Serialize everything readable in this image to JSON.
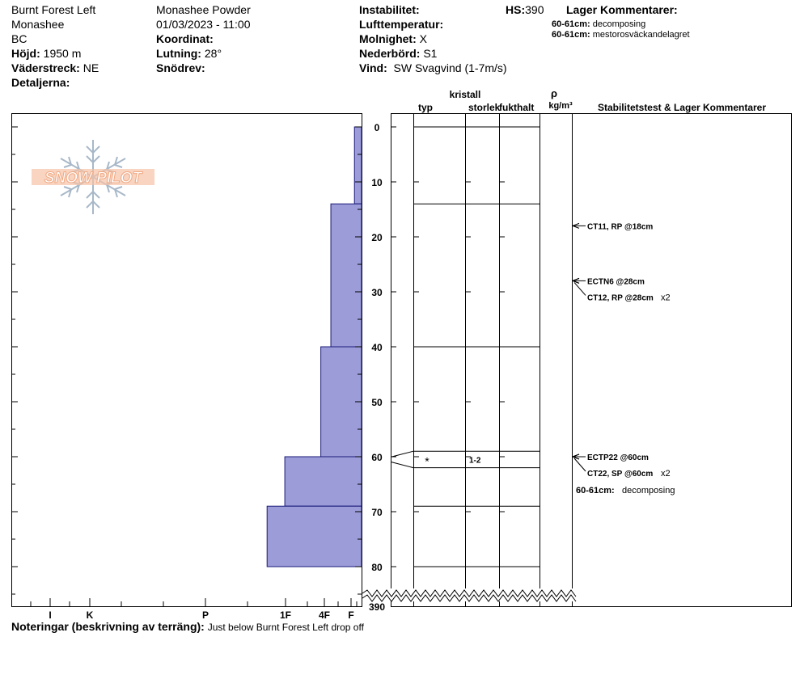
{
  "header": {
    "location": "Burnt Forest Left",
    "range": "Monashee",
    "region": "BC",
    "elevation_label": "Höjd:",
    "elevation": "1950 m",
    "aspect_label": "Väderstreck:",
    "aspect": "NE",
    "details_label": "Detaljerna:",
    "operation": "Monashee  Powder",
    "datetime": "01/03/2023 - 11:00",
    "coordinate_label": "Koordinat:",
    "slope_label": "Lutning:",
    "slope": "28°",
    "drift_label": "Snödrev:",
    "instability_label": "Instabilitet:",
    "air_temp_label": "Lufttemperatur:",
    "cloud_label": "Molnighet:",
    "cloud": "X",
    "precip_label": "Nederbörd:",
    "precip": "S1",
    "wind_label": "Vind:",
    "wind": "SW Svagvind (1-7m/s)",
    "hs_label": "HS:",
    "hs": "390",
    "layer_comments_label": "Lager Kommentarer:",
    "layer_comments": [
      {
        "depth": "60-61cm:",
        "text": "decomposing"
      },
      {
        "depth": "60-61cm:",
        "text": "mestorosväckandelagret"
      }
    ]
  },
  "columns": {
    "type": "typ",
    "crystal": "kristall",
    "size": "storlek",
    "moisture": "fukthalt",
    "rho": "ρ",
    "density_unit": "kg/m³",
    "stability": "Stabilitetstest & Lager Kommentarer"
  },
  "watermark": "SNOW PILOT",
  "chart_data": {
    "type": "snow-profile",
    "depth_ticks": [
      "0",
      "10",
      "20",
      "30",
      "40",
      "50",
      "60",
      "70",
      "80",
      "390"
    ],
    "depth_range": [
      0,
      80
    ],
    "total_depth_label": "390",
    "hardness_ticks": [
      "I",
      "K",
      "P",
      "1F",
      "4F",
      "F"
    ],
    "hardness_profile": [
      {
        "top": 0,
        "bottom": 14,
        "hardness": 0.12
      },
      {
        "top": 14,
        "bottom": 40,
        "hardness": 0.52
      },
      {
        "top": 40,
        "bottom": 60,
        "hardness": 0.69
      },
      {
        "top": 60,
        "bottom": 69,
        "hardness": 1.3
      },
      {
        "top": 69,
        "bottom": 80,
        "hardness": 1.6
      }
    ],
    "layer_boundaries": [
      0,
      14,
      40,
      59,
      62,
      69,
      80
    ],
    "layers": [
      {
        "top": 59,
        "bottom": 62,
        "type_symbol": "*",
        "size": "1-2"
      }
    ],
    "tests": [
      {
        "label": "CT11, RP @18cm",
        "depth": 18,
        "suffix": ""
      },
      {
        "label": "ECTN6 @28cm",
        "depth": 28,
        "suffix": ""
      },
      {
        "label": "CT12, RP @28cm",
        "depth": 28,
        "suffix": "x2"
      },
      {
        "label": "ECTP22 @60cm",
        "depth": 60,
        "suffix": ""
      },
      {
        "label": "CT22, SP @60cm",
        "depth": 60,
        "suffix": "x2"
      }
    ],
    "profile_comment": {
      "depth": "60-61cm:",
      "text": "decomposing"
    }
  },
  "notes": {
    "label": "Noteringar (beskrivning av terräng):",
    "text": "Just below Burnt Forest Left drop off"
  },
  "colors": {
    "hardness_fill": "#9c9cd8",
    "watermark": "#f0a882",
    "snowflake": "#a8b8c8"
  }
}
